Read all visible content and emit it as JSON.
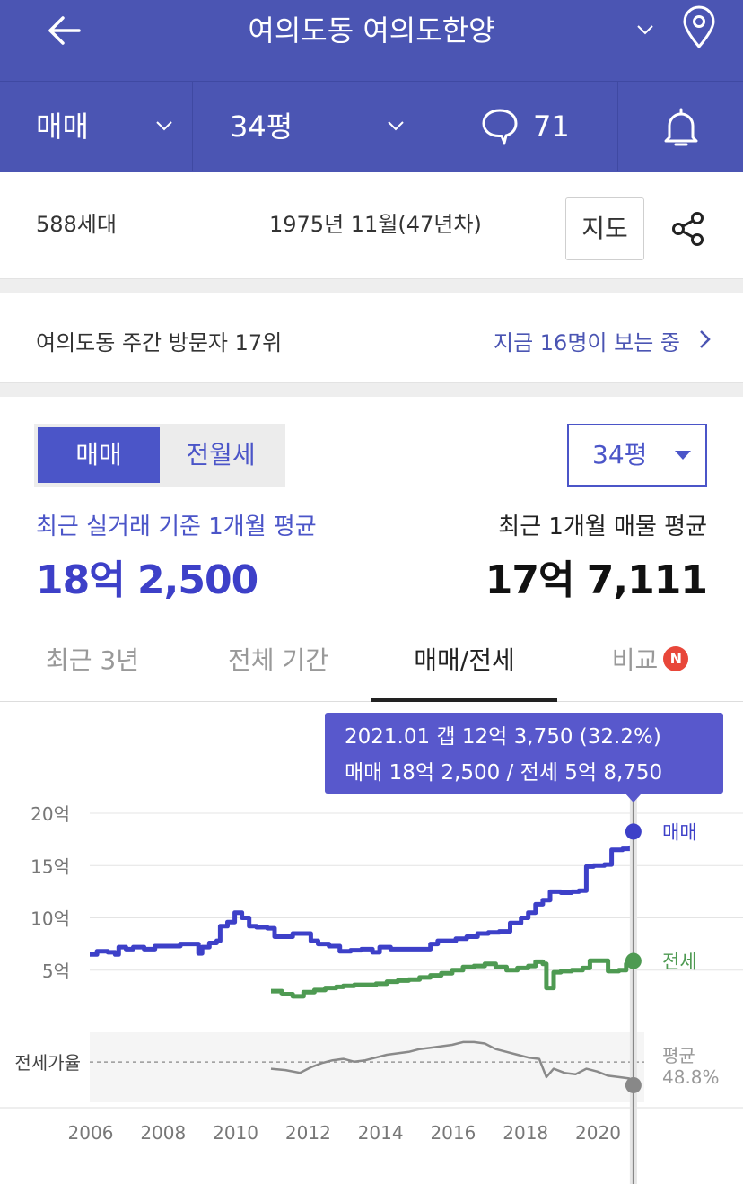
{
  "header": {
    "title": "여의도동 여의도한양"
  },
  "filters": {
    "deal_type": "매매",
    "size": "34평",
    "comment_count": "71"
  },
  "info": {
    "households": "588세대",
    "built": "1975년 11월(47년차)",
    "map_button": "지도"
  },
  "visitors": {
    "rank_text": "여의도동 주간 방문자 17위",
    "viewing_text": "지금 16명이 보는 중"
  },
  "price": {
    "toggle_active": "매매",
    "toggle_inactive": "전월세",
    "size_select": "34평",
    "recent_label": "최근 실거래 기준 1개월 평균",
    "recent_value": "18억 2,500",
    "listing_label": "최근 1개월 매물 평균",
    "listing_value": "17억 7,111"
  },
  "tabs": [
    {
      "label": "최근 3년",
      "active": false
    },
    {
      "label": "전체 기간",
      "active": false
    },
    {
      "label": "매매/전세",
      "active": true
    },
    {
      "label": "비교",
      "active": false,
      "badge": "N"
    }
  ],
  "colors": {
    "brand": "#4b55b3",
    "sale_line": "#3d40c8",
    "jeonse_line": "#4e9a52",
    "ratio_line": "#8a8a8a",
    "badge": "#e8473a"
  },
  "chart_data": {
    "type": "line",
    "tooltip": {
      "line1": "2021.01  갭 12억 3,750 (32.2%)",
      "line2": "매매 18억 2,500 / 전세 5억 8,750"
    },
    "y_ticks": [
      "20억",
      "15억",
      "10억",
      "5억"
    ],
    "y_tick_values": [
      20,
      15,
      10,
      5
    ],
    "x_ticks": [
      "2006",
      "2008",
      "2010",
      "2012",
      "2014",
      "2016",
      "2018",
      "2020"
    ],
    "x_tick_values": [
      2006,
      2008,
      2010,
      2012,
      2014,
      2016,
      2018,
      2020
    ],
    "ylim": [
      0,
      20
    ],
    "xlim": [
      2006,
      2021.3
    ],
    "ratio_label": "전세가율",
    "ratio_avg_label": "평균",
    "ratio_avg_value": "48.8%",
    "grid": true,
    "series": [
      {
        "name": "매매",
        "color": "#3d40c8",
        "points": [
          [
            2006.0,
            6.5
          ],
          [
            2006.2,
            6.8
          ],
          [
            2006.5,
            6.7
          ],
          [
            2006.7,
            6.5
          ],
          [
            2006.8,
            7.2
          ],
          [
            2007.0,
            7.0
          ],
          [
            2007.2,
            7.2
          ],
          [
            2007.5,
            7.0
          ],
          [
            2007.8,
            7.3
          ],
          [
            2008.2,
            7.3
          ],
          [
            2008.5,
            7.5
          ],
          [
            2008.8,
            7.5
          ],
          [
            2009.0,
            6.6
          ],
          [
            2009.1,
            7.2
          ],
          [
            2009.3,
            7.6
          ],
          [
            2009.5,
            7.8
          ],
          [
            2009.6,
            9.2
          ],
          [
            2009.8,
            9.6
          ],
          [
            2010.0,
            10.5
          ],
          [
            2010.2,
            10.0
          ],
          [
            2010.4,
            9.2
          ],
          [
            2010.6,
            9.1
          ],
          [
            2010.9,
            9.0
          ],
          [
            2011.1,
            8.2
          ],
          [
            2011.3,
            8.2
          ],
          [
            2011.6,
            8.5
          ],
          [
            2011.9,
            8.5
          ],
          [
            2012.1,
            7.8
          ],
          [
            2012.3,
            7.5
          ],
          [
            2012.6,
            7.3
          ],
          [
            2012.9,
            6.8
          ],
          [
            2013.2,
            6.9
          ],
          [
            2013.5,
            7.0
          ],
          [
            2013.8,
            6.7
          ],
          [
            2014.0,
            7.2
          ],
          [
            2014.3,
            7.0
          ],
          [
            2014.6,
            7.0
          ],
          [
            2014.9,
            7.0
          ],
          [
            2015.2,
            7.0
          ],
          [
            2015.4,
            7.5
          ],
          [
            2015.6,
            7.8
          ],
          [
            2015.9,
            7.8
          ],
          [
            2016.1,
            8.0
          ],
          [
            2016.4,
            8.2
          ],
          [
            2016.7,
            8.5
          ],
          [
            2017.0,
            8.6
          ],
          [
            2017.3,
            8.7
          ],
          [
            2017.6,
            9.5
          ],
          [
            2017.9,
            10.0
          ],
          [
            2018.1,
            10.5
          ],
          [
            2018.3,
            11.3
          ],
          [
            2018.5,
            11.7
          ],
          [
            2018.7,
            12.5
          ],
          [
            2019.0,
            12.4
          ],
          [
            2019.3,
            12.5
          ],
          [
            2019.5,
            12.6
          ],
          [
            2019.7,
            14.9
          ],
          [
            2019.9,
            15.0
          ],
          [
            2020.2,
            15.1
          ],
          [
            2020.4,
            16.5
          ],
          [
            2020.7,
            16.6
          ],
          [
            2020.9,
            16.7
          ],
          [
            2021.0,
            18.25
          ]
        ]
      },
      {
        "name": "전세",
        "color": "#4e9a52",
        "points": [
          [
            2011.0,
            3.0
          ],
          [
            2011.3,
            2.7
          ],
          [
            2011.6,
            2.5
          ],
          [
            2011.9,
            2.9
          ],
          [
            2012.2,
            3.1
          ],
          [
            2012.5,
            3.3
          ],
          [
            2012.8,
            3.4
          ],
          [
            2013.0,
            3.5
          ],
          [
            2013.3,
            3.6
          ],
          [
            2013.6,
            3.6
          ],
          [
            2013.9,
            3.7
          ],
          [
            2014.2,
            3.9
          ],
          [
            2014.5,
            4.0
          ],
          [
            2014.8,
            4.1
          ],
          [
            2015.1,
            4.3
          ],
          [
            2015.4,
            4.5
          ],
          [
            2015.7,
            4.7
          ],
          [
            2016.0,
            5.0
          ],
          [
            2016.3,
            5.3
          ],
          [
            2016.6,
            5.4
          ],
          [
            2016.9,
            5.6
          ],
          [
            2017.2,
            5.3
          ],
          [
            2017.5,
            5.0
          ],
          [
            2017.8,
            5.2
          ],
          [
            2018.1,
            5.4
          ],
          [
            2018.3,
            5.8
          ],
          [
            2018.5,
            5.6
          ],
          [
            2018.6,
            3.3
          ],
          [
            2018.8,
            4.8
          ],
          [
            2019.0,
            4.9
          ],
          [
            2019.3,
            5.0
          ],
          [
            2019.6,
            5.2
          ],
          [
            2019.8,
            5.9
          ],
          [
            2020.1,
            5.9
          ],
          [
            2020.3,
            4.9
          ],
          [
            2020.6,
            5.0
          ],
          [
            2020.8,
            5.6
          ],
          [
            2021.0,
            5.875
          ]
        ]
      },
      {
        "name": "전세가율",
        "color": "#8a8a8a",
        "points": [
          [
            2011.0,
            44
          ],
          [
            2011.4,
            43
          ],
          [
            2011.8,
            41
          ],
          [
            2012.1,
            45
          ],
          [
            2012.4,
            48
          ],
          [
            2012.7,
            50
          ],
          [
            2013.0,
            51
          ],
          [
            2013.3,
            49
          ],
          [
            2013.6,
            50
          ],
          [
            2013.9,
            52
          ],
          [
            2014.2,
            54
          ],
          [
            2014.5,
            55
          ],
          [
            2014.8,
            56
          ],
          [
            2015.1,
            58
          ],
          [
            2015.4,
            59
          ],
          [
            2015.7,
            60
          ],
          [
            2016.0,
            61
          ],
          [
            2016.3,
            63
          ],
          [
            2016.6,
            63
          ],
          [
            2016.9,
            62
          ],
          [
            2017.2,
            58
          ],
          [
            2017.5,
            56
          ],
          [
            2017.8,
            54
          ],
          [
            2018.1,
            52
          ],
          [
            2018.4,
            51
          ],
          [
            2018.6,
            38
          ],
          [
            2018.8,
            44
          ],
          [
            2019.1,
            41
          ],
          [
            2019.4,
            40
          ],
          [
            2019.7,
            44
          ],
          [
            2020.0,
            42
          ],
          [
            2020.3,
            39
          ],
          [
            2020.6,
            38
          ],
          [
            2020.9,
            37
          ],
          [
            2021.0,
            32.2
          ]
        ]
      }
    ]
  }
}
